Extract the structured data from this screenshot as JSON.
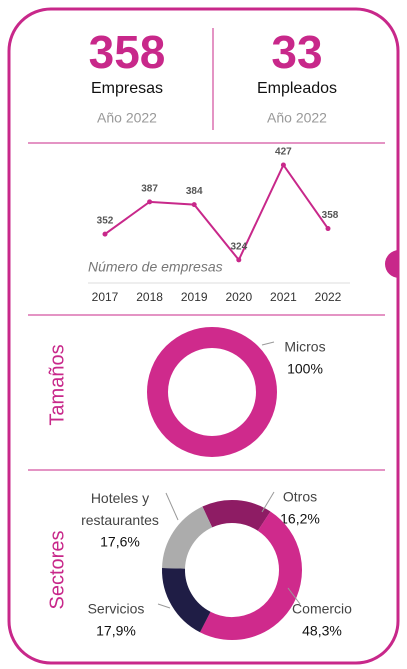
{
  "kpis": [
    {
      "value": "358",
      "label": "Empresas",
      "note": "Año 2022"
    },
    {
      "value": "33",
      "label": "Empleados",
      "note": "Año 2022"
    }
  ],
  "chart_data": [
    {
      "type": "line",
      "annotation": "Número de empresas",
      "categories": [
        "2017",
        "2018",
        "2019",
        "2020",
        "2021",
        "2022"
      ],
      "values": [
        352,
        387,
        384,
        324,
        427,
        358
      ],
      "color": "#c8288a",
      "ylim": [
        300,
        440
      ]
    },
    {
      "type": "donut",
      "title": "Tamaños",
      "categories": [
        "Micros"
      ],
      "values": [
        100
      ],
      "value_labels": [
        "100%"
      ],
      "colors": [
        "#cf2a8c"
      ]
    },
    {
      "type": "donut",
      "title": "Sectores",
      "categories": [
        "Otros",
        "Comercio",
        "Servicios",
        "Hoteles y restaurantes"
      ],
      "values": [
        16.2,
        48.3,
        17.9,
        17.6
      ],
      "value_labels": [
        "16,2%",
        "48,3%",
        "17,9%",
        "17,6%"
      ],
      "colors": [
        "#8e1c64",
        "#cf2a8c",
        "#1f1d45",
        "#acacac"
      ]
    }
  ]
}
